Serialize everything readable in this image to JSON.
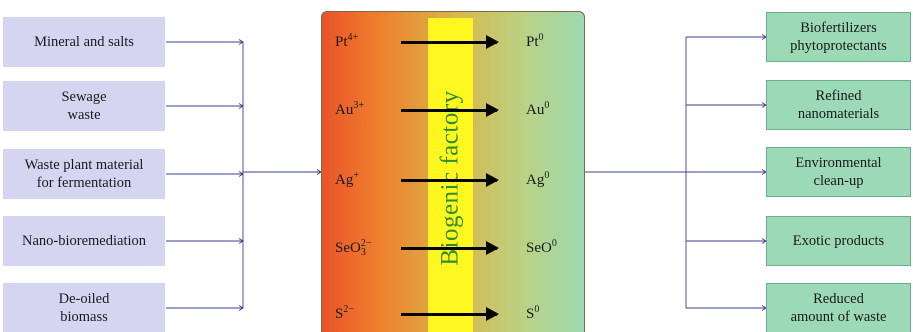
{
  "inputs": [
    "Mineral and salts",
    "Sewage\nwaste",
    "Waste plant material\nfor fermentation",
    "Nano-bioremediation",
    "De-oiled\nbiomass"
  ],
  "factory": {
    "title": "Biogenic factory",
    "reactions": [
      {
        "ion": "Pt",
        "charge": "4+",
        "sub": "",
        "product": "Pt",
        "product_sup": "0"
      },
      {
        "ion": "Au",
        "charge": "3+",
        "sub": "",
        "product": "Au",
        "product_sup": "0"
      },
      {
        "ion": "Ag",
        "charge": "+",
        "sub": "",
        "product": "Ag",
        "product_sup": "0"
      },
      {
        "ion": "SeO",
        "charge": "2−",
        "sub": "3",
        "product": "SeO",
        "product_sup": "0"
      },
      {
        "ion": "S",
        "charge": "2−",
        "sub": "",
        "product": "S",
        "product_sup": "0"
      }
    ]
  },
  "outputs": [
    "Biofertilizers\nphytoprotectants",
    "Refined\nnanomaterials",
    "Environmental\nclean-up",
    "Exotic products",
    "Reduced\namount of waste"
  ],
  "colors": {
    "input_fill": "#d5d5f2",
    "output_fill": "#9bd9b7",
    "factory_left": "#e9532a",
    "factory_right": "#9dd9b0",
    "band_fill": "#fff71f",
    "band_text": "#2e8f2e",
    "connector": "#3a3f8f"
  }
}
